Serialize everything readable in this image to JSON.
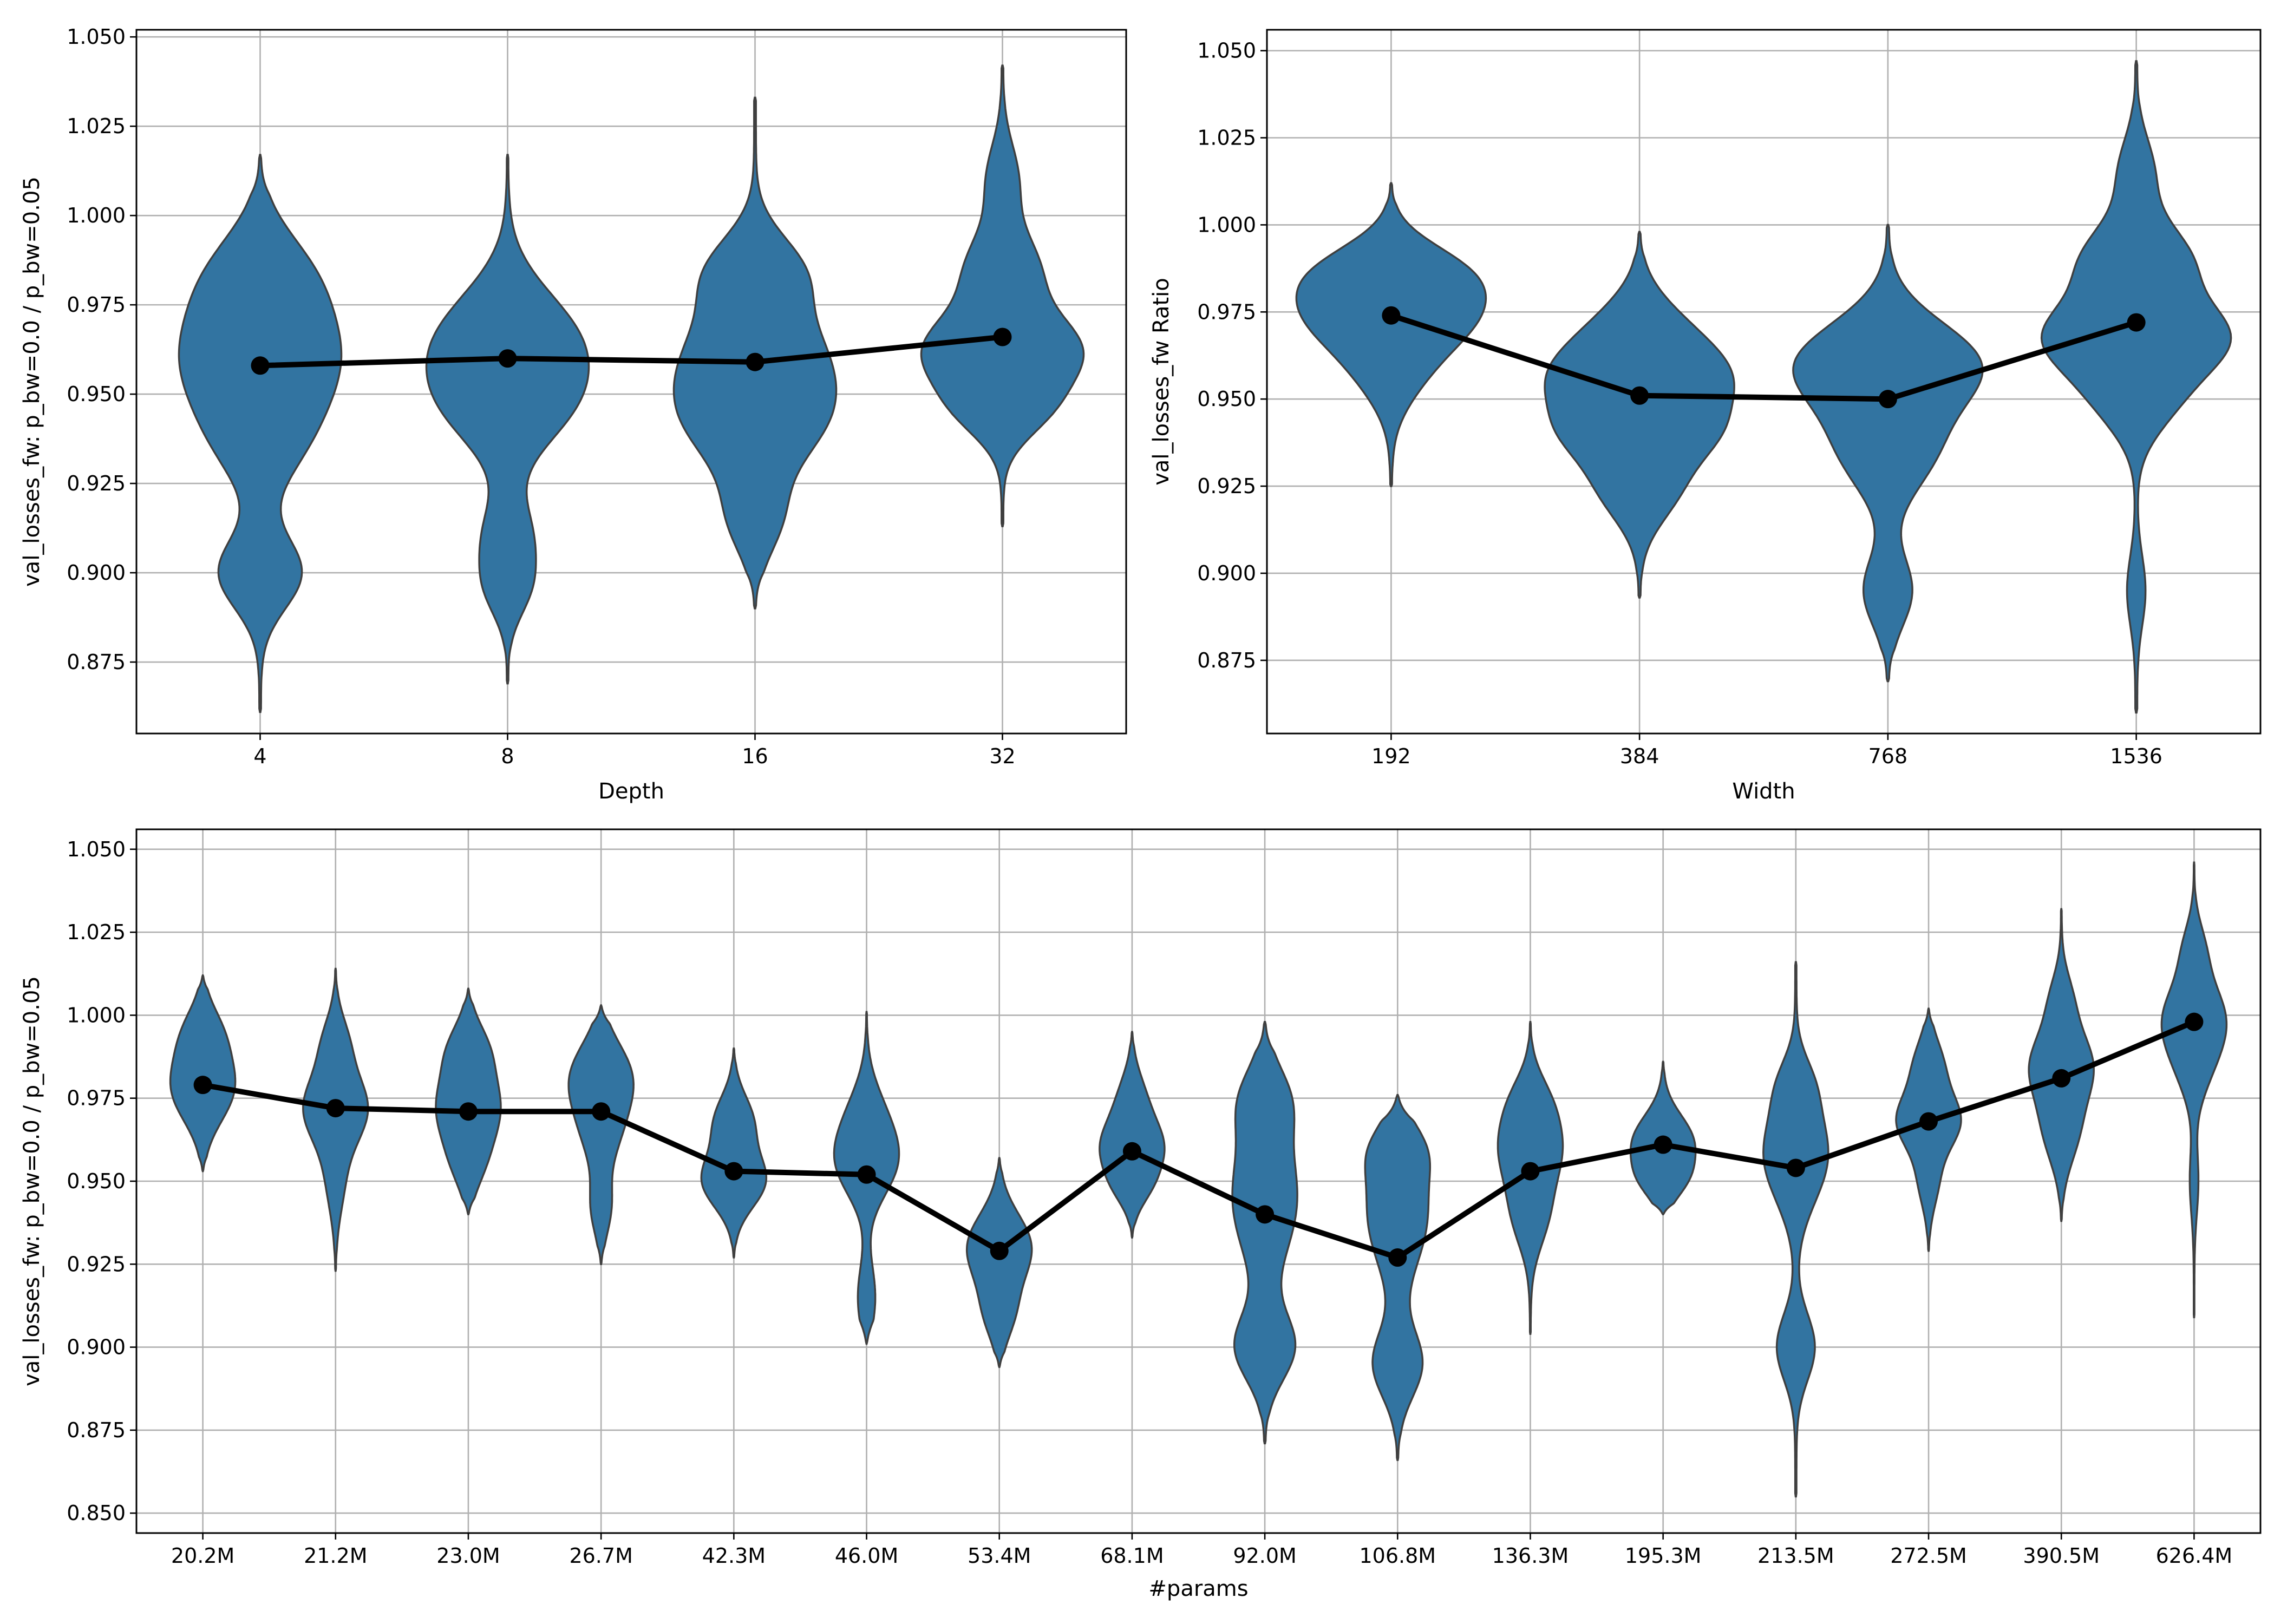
{
  "chart_data": [
    {
      "type": "violin",
      "xlabel": "Depth",
      "ylabel": "val_losses_fw: p_bw=0.0 / p_bw=0.05",
      "ylim": [
        0.855,
        1.052
      ],
      "yticks": [
        0.875,
        0.9,
        0.925,
        0.95,
        0.975,
        1.0,
        1.025,
        1.05
      ],
      "ytick_labels": [
        "0.875",
        "0.900",
        "0.925",
        "0.950",
        "0.975",
        "1.000",
        "1.025",
        "1.050"
      ],
      "grid": true,
      "color": "#3274a1",
      "line_color": "#000000",
      "categories": [
        "4",
        "8",
        "16",
        "32"
      ],
      "means": [
        0.958,
        0.96,
        0.959,
        0.966
      ],
      "distributions": [
        {
          "min": 0.861,
          "max": 1.017,
          "peaks": [
            [
              0.96,
              1.0,
              0.016
            ],
            [
              0.985,
              0.45,
              0.012
            ],
            [
              0.9,
              0.55,
              0.01
            ],
            [
              0.935,
              0.35,
              0.012
            ]
          ]
        },
        {
          "min": 0.869,
          "max": 1.017,
          "peaks": [
            [
              0.965,
              1.0,
              0.014
            ],
            [
              0.945,
              0.65,
              0.012
            ],
            [
              0.91,
              0.35,
              0.01
            ],
            [
              0.895,
              0.25,
              0.008
            ]
          ]
        },
        {
          "min": 0.89,
          "max": 1.033,
          "peaks": [
            [
              0.96,
              0.8,
              0.014
            ],
            [
              0.94,
              0.6,
              0.012
            ],
            [
              0.985,
              0.5,
              0.01
            ],
            [
              0.915,
              0.3,
              0.01
            ]
          ]
        },
        {
          "min": 0.913,
          "max": 1.042,
          "peaks": [
            [
              0.962,
              1.0,
              0.01
            ],
            [
              0.985,
              0.45,
              0.01
            ],
            [
              0.945,
              0.45,
              0.008
            ],
            [
              1.01,
              0.2,
              0.01
            ]
          ]
        }
      ]
    },
    {
      "type": "violin",
      "xlabel": "Width",
      "ylabel": "val_losses_fw Ratio",
      "ylim": [
        0.854,
        1.056
      ],
      "yticks": [
        0.875,
        0.9,
        0.925,
        0.95,
        0.975,
        1.0,
        1.025,
        1.05
      ],
      "ytick_labels": [
        "0.875",
        "0.900",
        "0.925",
        "0.950",
        "0.975",
        "1.000",
        "1.025",
        "1.050"
      ],
      "grid": true,
      "color": "#3274a1",
      "line_color": "#000000",
      "categories": [
        "192",
        "384",
        "768",
        "1536"
      ],
      "means": [
        0.974,
        0.951,
        0.95,
        0.972
      ],
      "distributions": [
        {
          "min": 0.925,
          "max": 1.012,
          "peaks": [
            [
              0.975,
              1.0,
              0.01
            ],
            [
              0.988,
              0.6,
              0.008
            ],
            [
              0.958,
              0.35,
              0.01
            ]
          ]
        },
        {
          "min": 0.893,
          "max": 0.998,
          "peaks": [
            [
              0.955,
              0.9,
              0.01
            ],
            [
              0.94,
              0.55,
              0.008
            ],
            [
              0.925,
              0.45,
              0.01
            ],
            [
              0.97,
              0.4,
              0.01
            ]
          ]
        },
        {
          "min": 0.869,
          "max": 1.0,
          "peaks": [
            [
              0.96,
              0.95,
              0.012
            ],
            [
              0.935,
              0.45,
              0.012
            ],
            [
              0.895,
              0.25,
              0.01
            ]
          ]
        },
        {
          "min": 0.86,
          "max": 1.047,
          "peaks": [
            [
              0.968,
              1.0,
              0.01
            ],
            [
              0.99,
              0.6,
              0.01
            ],
            [
              0.95,
              0.4,
              0.01
            ],
            [
              1.015,
              0.2,
              0.01
            ],
            [
              0.895,
              0.1,
              0.01
            ]
          ]
        }
      ]
    },
    {
      "type": "violin",
      "xlabel": "#params",
      "ylabel": "val_losses_fw: p_bw=0.0 / p_bw=0.05",
      "ylim": [
        0.844,
        1.056
      ],
      "yticks": [
        0.85,
        0.875,
        0.9,
        0.925,
        0.95,
        0.975,
        1.0,
        1.025,
        1.05
      ],
      "ytick_labels": [
        "0.850",
        "0.875",
        "0.900",
        "0.925",
        "0.950",
        "0.975",
        "1.000",
        "1.025",
        "1.050"
      ],
      "grid": true,
      "color": "#3274a1",
      "line_color": "#000000",
      "categories": [
        "20.2M",
        "21.2M",
        "23.0M",
        "26.7M",
        "42.3M",
        "46.0M",
        "53.4M",
        "68.1M",
        "92.0M",
        "106.8M",
        "136.3M",
        "195.3M",
        "213.5M",
        "272.5M",
        "390.5M",
        "626.4M"
      ],
      "means": [
        0.979,
        0.972,
        0.971,
        0.971,
        0.953,
        0.952,
        0.929,
        0.959,
        0.94,
        0.927,
        0.953,
        0.961,
        0.954,
        0.968,
        0.981,
        0.998
      ],
      "distributions": [
        {
          "min": 0.953,
          "max": 1.012,
          "peaks": [
            [
              0.978,
              1.0,
              0.01
            ],
            [
              0.995,
              0.5,
              0.008
            ]
          ]
        },
        {
          "min": 0.923,
          "max": 1.014,
          "peaks": [
            [
              0.972,
              1.0,
              0.01
            ],
            [
              0.992,
              0.35,
              0.008
            ],
            [
              0.95,
              0.25,
              0.01
            ]
          ]
        },
        {
          "min": 0.94,
          "max": 1.008,
          "peaks": [
            [
              0.972,
              0.9,
              0.01
            ],
            [
              0.99,
              0.5,
              0.008
            ],
            [
              0.955,
              0.35,
              0.008
            ]
          ]
        },
        {
          "min": 0.925,
          "max": 1.003,
          "peaks": [
            [
              0.982,
              0.9,
              0.01
            ],
            [
              0.965,
              0.5,
              0.01
            ],
            [
              0.942,
              0.3,
              0.008
            ]
          ]
        },
        {
          "min": 0.927,
          "max": 0.99,
          "peaks": [
            [
              0.95,
              1.0,
              0.008
            ],
            [
              0.968,
              0.6,
              0.008
            ]
          ]
        },
        {
          "min": 0.901,
          "max": 1.001,
          "peaks": [
            [
              0.955,
              0.95,
              0.01
            ],
            [
              0.97,
              0.5,
              0.01
            ],
            [
              0.915,
              0.3,
              0.01
            ]
          ]
        },
        {
          "min": 0.894,
          "max": 0.957,
          "peaks": [
            [
              0.93,
              1.0,
              0.01
            ],
            [
              0.91,
              0.4,
              0.008
            ]
          ]
        },
        {
          "min": 0.933,
          "max": 0.995,
          "peaks": [
            [
              0.96,
              1.0,
              0.008
            ],
            [
              0.948,
              0.4,
              0.006
            ],
            [
              0.975,
              0.4,
              0.008
            ]
          ]
        },
        {
          "min": 0.871,
          "max": 0.998,
          "peaks": [
            [
              0.945,
              0.5,
              0.018
            ],
            [
              0.9,
              0.45,
              0.01
            ],
            [
              0.975,
              0.3,
              0.01
            ]
          ]
        },
        {
          "min": 0.866,
          "max": 0.976,
          "peaks": [
            [
              0.94,
              0.55,
              0.016
            ],
            [
              0.895,
              0.45,
              0.01
            ],
            [
              0.96,
              0.3,
              0.008
            ]
          ]
        },
        {
          "min": 0.904,
          "max": 0.998,
          "peaks": [
            [
              0.96,
              0.85,
              0.01
            ],
            [
              0.94,
              0.5,
              0.01
            ],
            [
              0.975,
              0.4,
              0.008
            ]
          ]
        },
        {
          "min": 0.94,
          "max": 0.986,
          "peaks": [
            [
              0.962,
              1.0,
              0.008
            ],
            [
              0.95,
              0.55,
              0.006
            ]
          ]
        },
        {
          "min": 0.855,
          "max": 1.016,
          "peaks": [
            [
              0.958,
              0.6,
              0.014
            ],
            [
              0.9,
              0.35,
              0.01
            ],
            [
              0.98,
              0.2,
              0.008
            ]
          ]
        },
        {
          "min": 0.929,
          "max": 1.002,
          "peaks": [
            [
              0.968,
              1.0,
              0.008
            ],
            [
              0.985,
              0.45,
              0.008
            ],
            [
              0.95,
              0.3,
              0.008
            ]
          ]
        },
        {
          "min": 0.938,
          "max": 1.032,
          "peaks": [
            [
              0.985,
              0.95,
              0.01
            ],
            [
              0.965,
              0.5,
              0.01
            ],
            [
              1.005,
              0.3,
              0.008
            ]
          ]
        },
        {
          "min": 0.909,
          "max": 1.046,
          "peaks": [
            [
              1.0,
              1.0,
              0.01
            ],
            [
              0.985,
              0.5,
              0.01
            ],
            [
              1.02,
              0.35,
              0.008
            ],
            [
              0.95,
              0.15,
              0.01
            ]
          ]
        }
      ]
    }
  ]
}
